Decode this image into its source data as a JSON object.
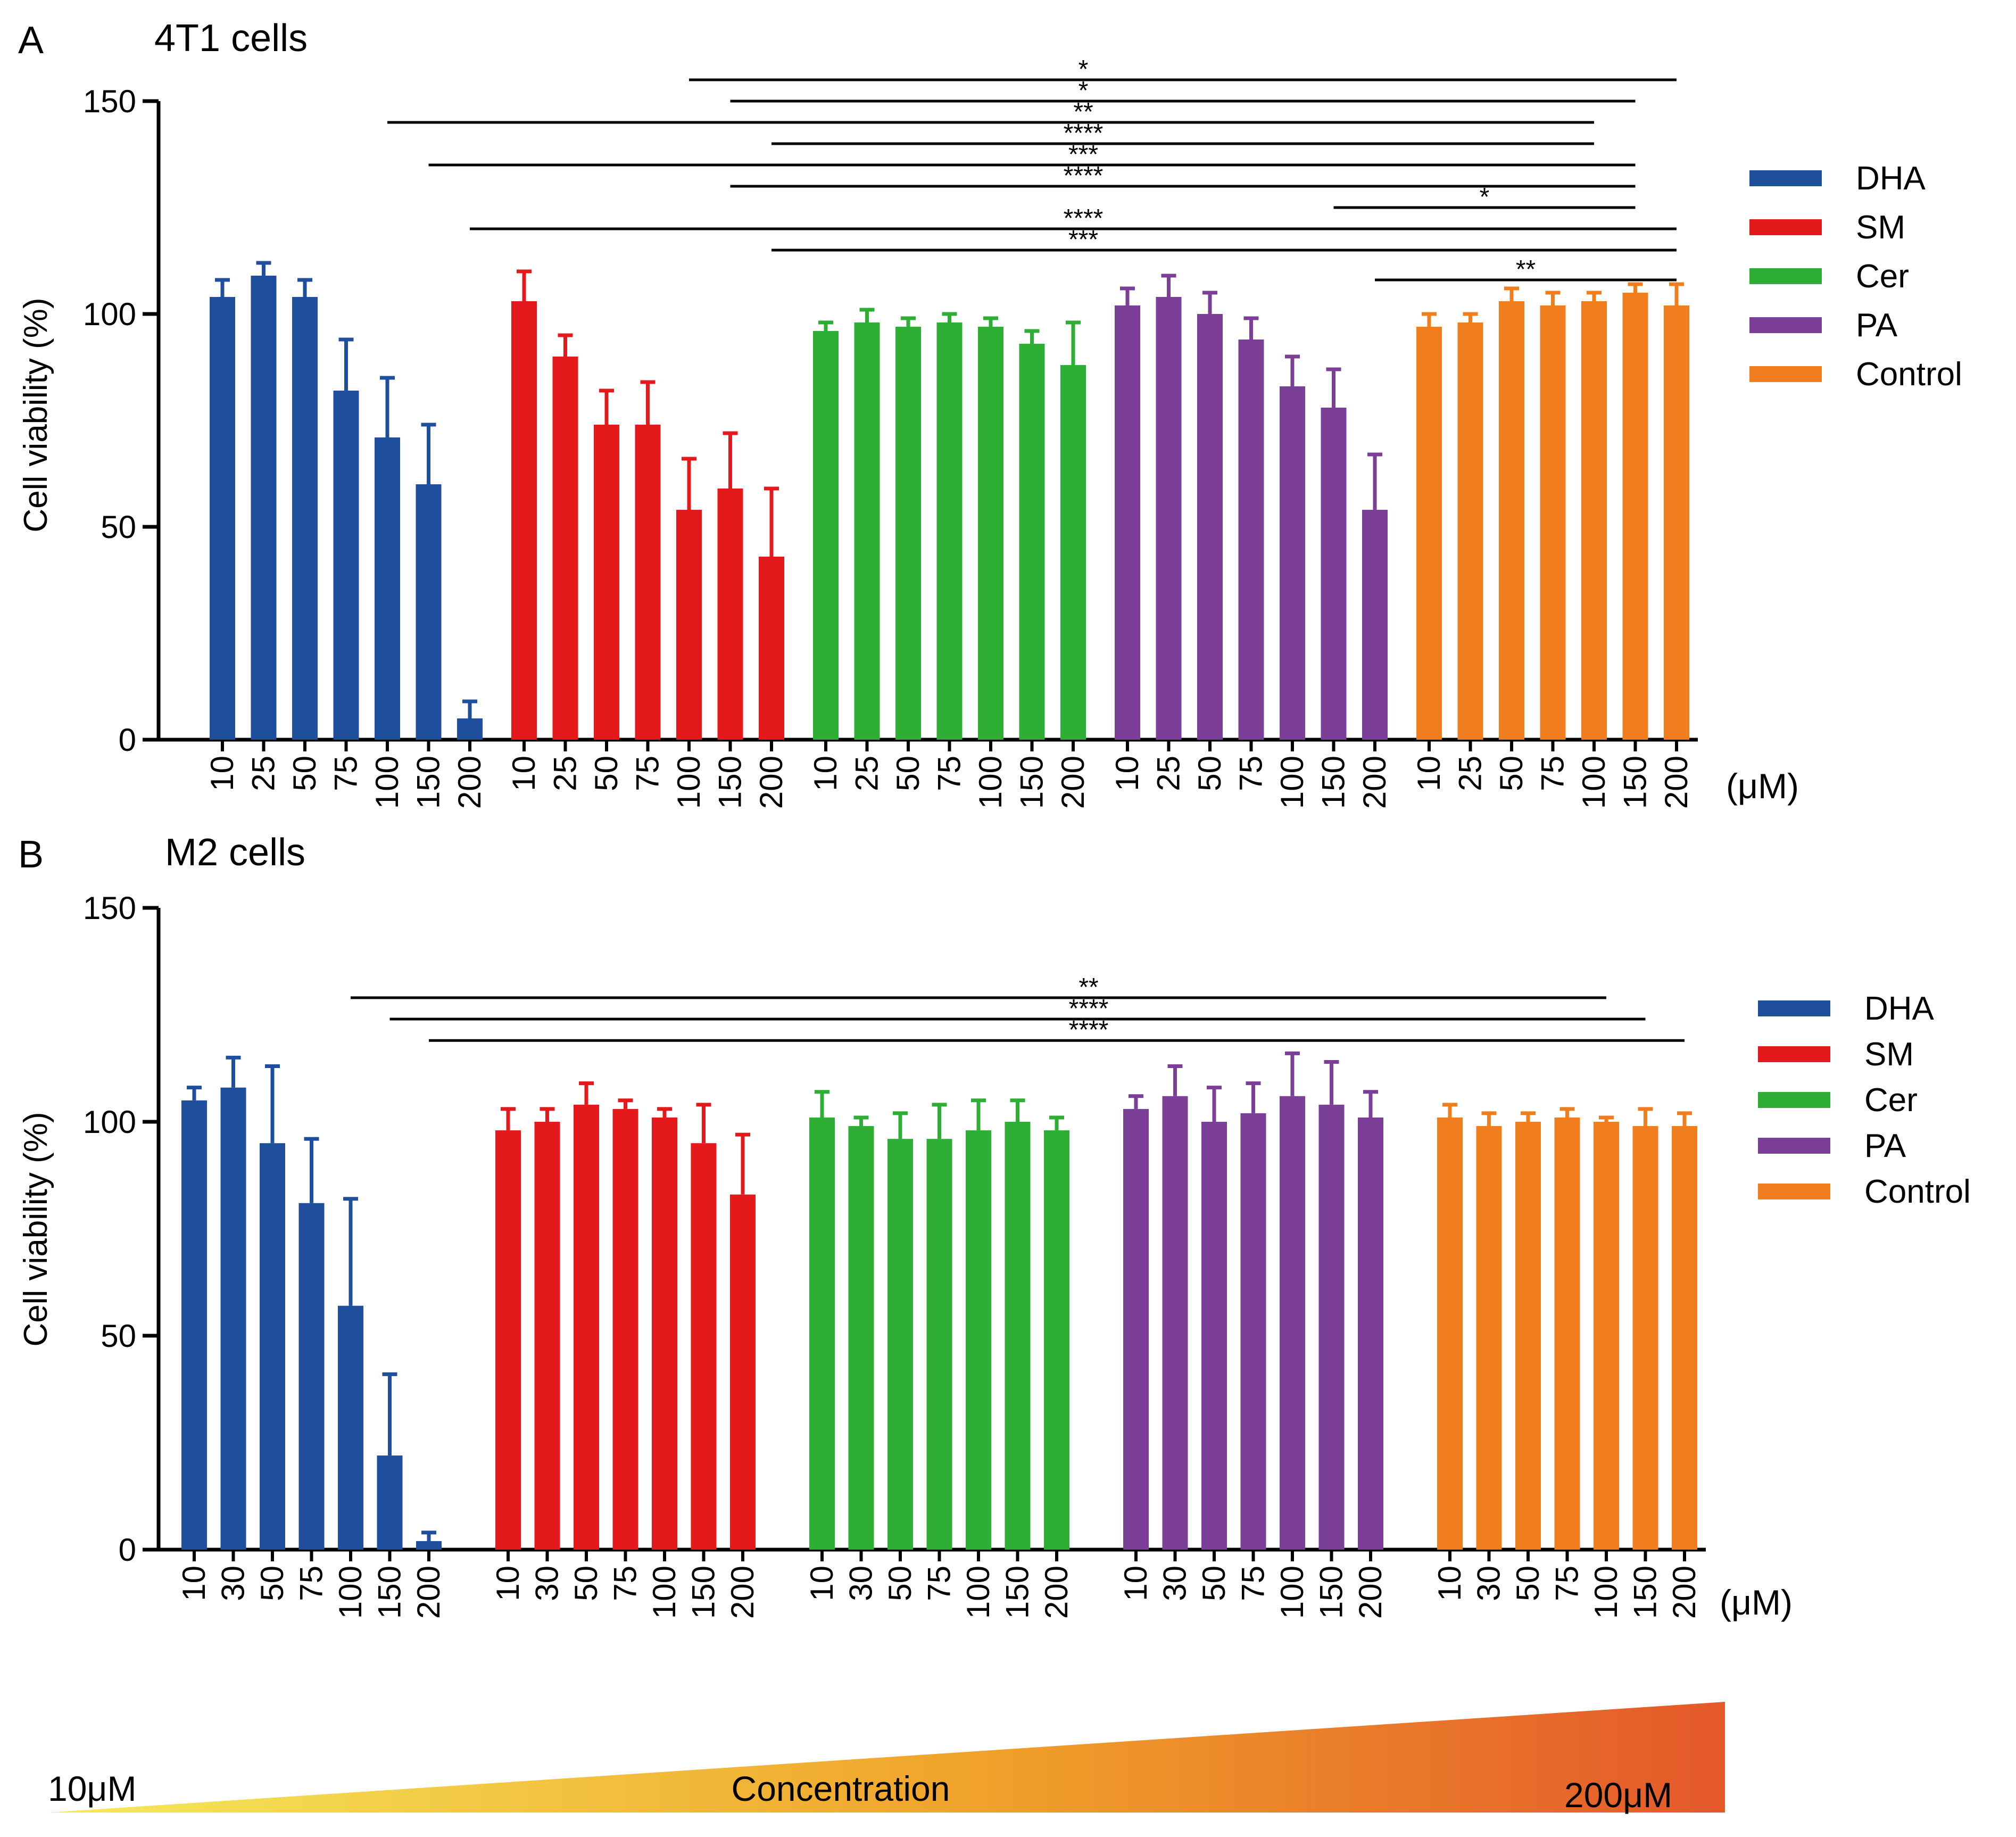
{
  "chart_data": [
    {
      "type": "bar",
      "panel_label": "A",
      "title": "4T1 cells",
      "ylabel": "Cell viability (%)",
      "ylim": [
        0,
        150
      ],
      "yticks": [
        "0",
        "50",
        "100",
        "150"
      ],
      "unit_label": "(μM)",
      "concentrations": [
        "10",
        "25",
        "50",
        "75",
        "100",
        "150",
        "200"
      ],
      "series": [
        {
          "name": "DHA",
          "color": "#1f4e9c",
          "values": [
            104,
            109,
            104,
            82,
            71,
            60,
            5
          ],
          "errors": [
            4,
            3,
            4,
            12,
            14,
            14,
            4
          ]
        },
        {
          "name": "SM",
          "color": "#e4191c",
          "values": [
            103,
            90,
            74,
            74,
            54,
            59,
            43
          ],
          "errors": [
            7,
            5,
            8,
            10,
            12,
            13,
            16
          ]
        },
        {
          "name": "Cer",
          "color": "#2fae35",
          "values": [
            96,
            98,
            97,
            98,
            97,
            93,
            88
          ],
          "errors": [
            2,
            3,
            2,
            2,
            2,
            3,
            10
          ]
        },
        {
          "name": "PA",
          "color": "#7b3f98",
          "values": [
            102,
            104,
            100,
            94,
            83,
            78,
            54
          ],
          "errors": [
            4,
            5,
            5,
            5,
            7,
            9,
            13
          ]
        },
        {
          "name": "Control",
          "color": "#f07e1e",
          "values": [
            97,
            98,
            103,
            102,
            103,
            105,
            102
          ],
          "errors": [
            3,
            2,
            3,
            3,
            2,
            2,
            5
          ]
        }
      ],
      "significance": [
        {
          "label": "*",
          "from": [
            1,
            4
          ],
          "to": [
            4,
            6
          ],
          "y": 155
        },
        {
          "label": "*",
          "from": [
            1,
            5
          ],
          "to": [
            4,
            5
          ],
          "y": 150
        },
        {
          "label": "**",
          "from": [
            0,
            4
          ],
          "to": [
            4,
            4
          ],
          "y": 145
        },
        {
          "label": "****",
          "from": [
            1,
            6
          ],
          "to": [
            4,
            4
          ],
          "y": 140
        },
        {
          "label": "***",
          "from": [
            0,
            5
          ],
          "to": [
            4,
            5
          ],
          "y": 135
        },
        {
          "label": "****",
          "from": [
            1,
            5
          ],
          "to": [
            4,
            5
          ],
          "y": 130
        },
        {
          "label": "*",
          "from": [
            3,
            5
          ],
          "to": [
            4,
            5
          ],
          "y": 125
        },
        {
          "label": "****",
          "from": [
            0,
            6
          ],
          "to": [
            4,
            6
          ],
          "y": 120
        },
        {
          "label": "***",
          "from": [
            1,
            6
          ],
          "to": [
            4,
            6
          ],
          "y": 115
        },
        {
          "label": "**",
          "from": [
            3,
            6
          ],
          "to": [
            4,
            6
          ],
          "y": 108
        }
      ]
    },
    {
      "type": "bar",
      "panel_label": "B",
      "title": "M2 cells",
      "ylabel": "Cell viability (%)",
      "ylim": [
        0,
        150
      ],
      "yticks": [
        "0",
        "50",
        "100",
        "150"
      ],
      "unit_label": "(μM)",
      "concentrations": [
        "10",
        "30",
        "50",
        "75",
        "100",
        "150",
        "200"
      ],
      "series": [
        {
          "name": "DHA",
          "color": "#1f4e9c",
          "values": [
            105,
            108,
            95,
            81,
            57,
            22,
            2
          ],
          "errors": [
            3,
            7,
            18,
            15,
            25,
            19,
            2
          ]
        },
        {
          "name": "SM",
          "color": "#e4191c",
          "values": [
            98,
            100,
            104,
            103,
            101,
            95,
            83
          ],
          "errors": [
            5,
            3,
            5,
            2,
            2,
            9,
            14
          ]
        },
        {
          "name": "Cer",
          "color": "#2fae35",
          "values": [
            101,
            99,
            96,
            96,
            98,
            100,
            98
          ],
          "errors": [
            6,
            2,
            6,
            8,
            7,
            5,
            3
          ]
        },
        {
          "name": "PA",
          "color": "#7b3f98",
          "values": [
            103,
            106,
            100,
            102,
            106,
            104,
            101
          ],
          "errors": [
            3,
            7,
            8,
            7,
            10,
            10,
            6
          ]
        },
        {
          "name": "Control",
          "color": "#f07e1e",
          "values": [
            101,
            99,
            100,
            101,
            100,
            99,
            99
          ],
          "errors": [
            3,
            3,
            2,
            2,
            1,
            4,
            3
          ]
        }
      ],
      "significance": [
        {
          "label": "**",
          "from": [
            0,
            4
          ],
          "to": [
            4,
            4
          ],
          "y": 129
        },
        {
          "label": "****",
          "from": [
            0,
            5
          ],
          "to": [
            4,
            5
          ],
          "y": 124
        },
        {
          "label": "****",
          "from": [
            0,
            6
          ],
          "to": [
            4,
            6
          ],
          "y": 119
        }
      ]
    }
  ],
  "gradient": {
    "label": "Concentration",
    "min_label": "10μM",
    "max_label": "200μM",
    "color_start": "#f4ea5a",
    "color_mid": "#f0a32a",
    "color_end": "#e4582a"
  }
}
